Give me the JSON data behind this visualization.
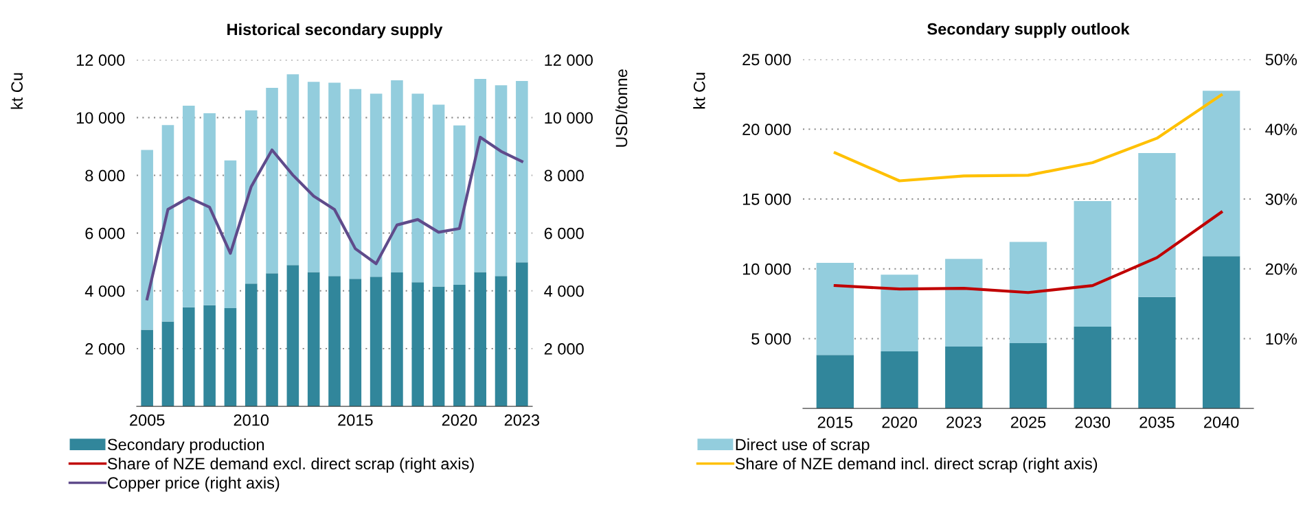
{
  "chart_data": [
    {
      "type": "bar",
      "title": "Historical secondary supply",
      "ylabel": "kt Cu",
      "y2label": "USD/tonne",
      "stacked": true,
      "grid": "y",
      "legend": "bottom",
      "categories": [
        "2005",
        null,
        null,
        null,
        null,
        "2010",
        null,
        null,
        null,
        null,
        "2015",
        null,
        null,
        null,
        null,
        "2020",
        null,
        null,
        "2023"
      ],
      "ylim": [
        0,
        12000
      ],
      "yticks": [
        {
          "value": 2000,
          "label": "2 000"
        },
        {
          "value": 4000,
          "label": "4 000"
        },
        {
          "value": 6000,
          "label": "6 000"
        },
        {
          "value": 8000,
          "label": "8 000"
        },
        {
          "value": 10000,
          "label": "10 000"
        },
        {
          "value": 12000,
          "label": "12 000"
        }
      ],
      "y2lim": [
        0,
        12000
      ],
      "y2ticks": [
        {
          "value": 2000,
          "label": "2 000"
        },
        {
          "value": 4000,
          "label": "4 000"
        },
        {
          "value": 6000,
          "label": "6 000"
        },
        {
          "value": 8000,
          "label": "8 000"
        },
        {
          "value": 10000,
          "label": "10 000"
        },
        {
          "value": 12000,
          "label": "12 000"
        }
      ],
      "series": [
        {
          "name": "Secondary production",
          "color": "#31869b",
          "values": [
            2650,
            2940,
            3430,
            3500,
            3400,
            4250,
            4610,
            4890,
            4650,
            4510,
            4420,
            4490,
            4640,
            4300,
            4150,
            4210,
            4650,
            4510,
            4990
          ]
        },
        {
          "name": "Direct use of scrap",
          "color": "#93cddd",
          "values": [
            6230,
            6800,
            6980,
            6650,
            5120,
            6000,
            6420,
            6610,
            6590,
            6700,
            6570,
            6340,
            6650,
            6530,
            6300,
            5520,
            6690,
            6610,
            6280
          ]
        },
        {
          "name": "Copper price (right axis)",
          "type": "line",
          "axis": "y2",
          "color": "#5f4b8b",
          "values": [
            3720,
            6820,
            7230,
            6900,
            5300,
            7610,
            8880,
            8010,
            7280,
            6820,
            5460,
            4940,
            6280,
            6470,
            6030,
            6160,
            9320,
            8830,
            8480
          ]
        }
      ]
    },
    {
      "type": "bar",
      "title": "Secondary supply outlook",
      "ylabel": "kt Cu",
      "stacked": true,
      "grid": "y",
      "legend": "bottom",
      "categories": [
        "2015",
        "2020",
        "2023",
        "2025",
        "2030",
        "2035",
        "2040"
      ],
      "ylim": [
        0,
        25000
      ],
      "yticks": [
        {
          "value": 5000,
          "label": "5 000"
        },
        {
          "value": 10000,
          "label": "10 000"
        },
        {
          "value": 15000,
          "label": "15 000"
        },
        {
          "value": 20000,
          "label": "20 000"
        },
        {
          "value": 25000,
          "label": "25 000"
        }
      ],
      "y2lim": [
        0,
        50
      ],
      "y2ticks": [
        {
          "value": 10,
          "label": "10%"
        },
        {
          "value": 20,
          "label": "20%"
        },
        {
          "value": 30,
          "label": "30%"
        },
        {
          "value": 40,
          "label": "40%"
        },
        {
          "value": 50,
          "label": "50%"
        }
      ],
      "series": [
        {
          "color": "#31869b",
          "values": [
            3830,
            4090,
            4430,
            4680,
            5860,
            7980,
            10910
          ]
        },
        {
          "color": "#93cddd",
          "values": [
            6600,
            5490,
            6280,
            7240,
            8990,
            10310,
            11840
          ]
        },
        {
          "name": "Share of NZE demand excl. direct scrap (right axis)",
          "type": "line",
          "axis": "y2",
          "color": "#c00000",
          "values": [
            17.6,
            17.1,
            17.2,
            16.6,
            17.6,
            21.6,
            28.1
          ]
        },
        {
          "name": "Share of NZE demand incl. direct scrap (right axis)",
          "type": "line",
          "axis": "y2",
          "color": "#ffc000",
          "values": [
            36.6,
            32.6,
            33.3,
            33.4,
            35.2,
            38.7,
            44.9
          ]
        }
      ]
    }
  ]
}
